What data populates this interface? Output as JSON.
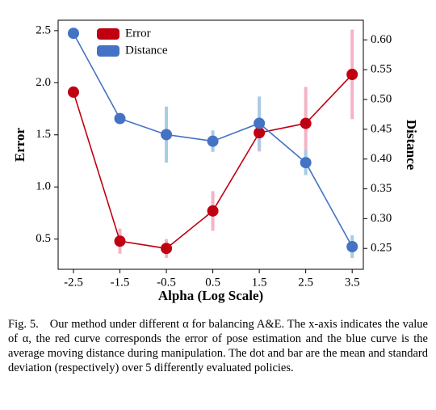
{
  "chart_data": {
    "type": "line",
    "x_label": "Alpha (Log Scale)",
    "y_label": "Error",
    "y2_label": "Distance",
    "x": [
      -2.5,
      -1.5,
      -0.5,
      0.5,
      1.5,
      2.5,
      3.5
    ],
    "xlim": [
      -2.83,
      3.74
    ],
    "xticks": [
      -2.5,
      -1.5,
      -0.5,
      0.5,
      1.5,
      2.5,
      3.5
    ],
    "ylim": [
      0.21,
      2.6
    ],
    "yticks": [
      0.5,
      {
        "value": 1.0,
        "label": "1.0"
      },
      1.5,
      {
        "value": 2.0,
        "label": "2.0"
      },
      2.5
    ],
    "y2lim": [
      0.215,
      0.633
    ],
    "y2ticks": [
      0.25,
      {
        "value": 0.3,
        "label": "0.30"
      },
      0.35,
      {
        "value": 0.4,
        "label": "0.40"
      },
      0.45,
      {
        "value": 0.5,
        "label": "0.50"
      },
      0.55,
      {
        "value": 0.6,
        "label": "0.60"
      }
    ],
    "legend": "upper left",
    "series": [
      {
        "name": "Error",
        "color": "#c00010",
        "error_color": "#f4b3c6",
        "values": [
          1.91,
          0.48,
          0.41,
          0.77,
          1.52,
          1.61,
          2.08
        ],
        "errors": [
          0.02,
          0.12,
          0.09,
          0.19,
          0.18,
          0.35,
          0.43
        ]
      },
      {
        "name": "Distance",
        "color": "#4472c4",
        "error_color": "#a8cce4",
        "axis": "y2",
        "values": [
          0.611,
          0.468,
          0.441,
          0.43,
          0.46,
          0.394,
          0.253
        ],
        "errors": [
          0.004,
          0.004,
          0.047,
          0.018,
          0.045,
          0.021,
          0.019
        ]
      }
    ]
  },
  "caption": {
    "label": "Fig. 5.",
    "text": "Our method under different α for balancing A&E. The x-axis indicates the value of α, the red curve corresponds the error of pose estimation and the blue curve is the average moving distance during manipulation. The dot and bar are the mean and standard deviation (respectively) over 5 differently evaluated policies."
  }
}
